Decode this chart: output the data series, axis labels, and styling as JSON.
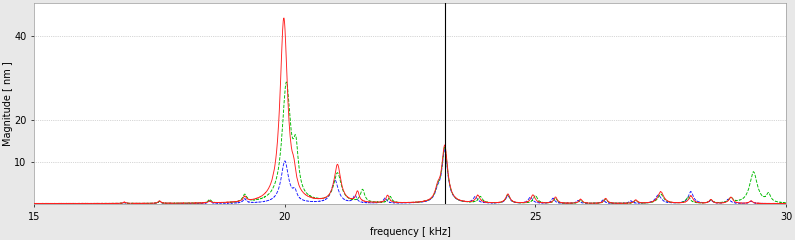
{
  "title": "",
  "xlabel": "frequency [ kHz]",
  "ylabel": "Magnitude [ nm ]",
  "xlim": [
    15,
    30
  ],
  "ylim": [
    0,
    48
  ],
  "ytick_vals": [
    10,
    20,
    40
  ],
  "ytick_labels": [
    "10",
    "20",
    "40"
  ],
  "vline_x": 23.1904,
  "background_color": "#e8e8e8",
  "plot_bg": "#ffffff",
  "grid_color": "#b0b0b0",
  "colors": {
    "red": "#ff2020",
    "green": "#00bb00",
    "blue": "#2020ff"
  }
}
